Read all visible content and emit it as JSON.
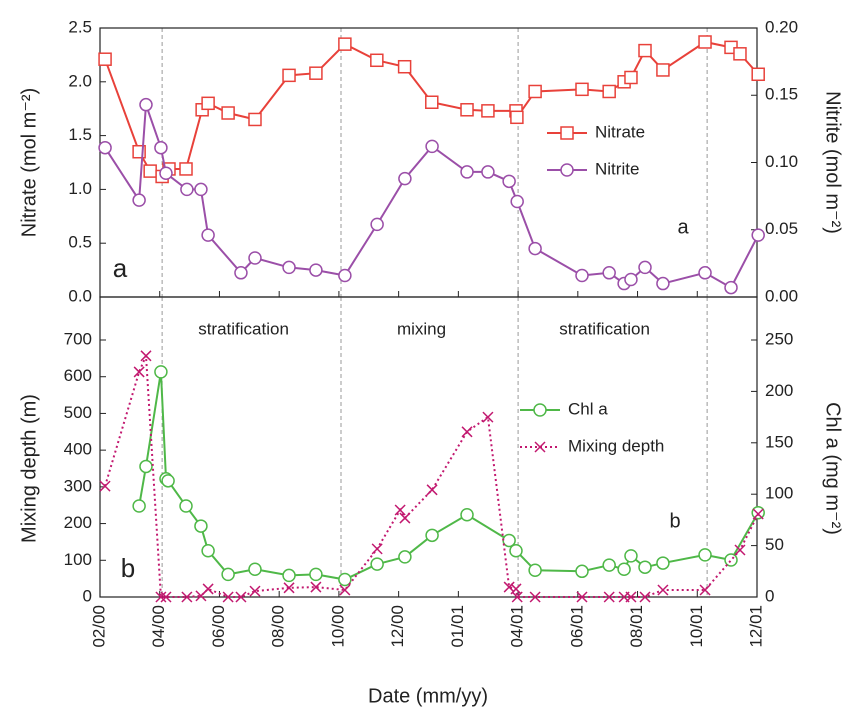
{
  "chart_data": [
    {
      "type": "line",
      "ylabel": "Nitrate (mol m⁻²)",
      "y2label": "Nitrite (mol m⁻²)",
      "xlim": [
        2,
        24
      ],
      "ylim": [
        0,
        2.5
      ],
      "yticks": [
        {
          "value": 0,
          "label": "0.0"
        },
        0.5,
        {
          "value": 1,
          "label": "1.0"
        },
        1.5,
        {
          "value": 2,
          "label": "2.0"
        },
        2.5
      ],
      "y2lim": [
        0,
        0.2
      ],
      "y2ticks": [
        {
          "value": 0,
          "label": "0.00"
        },
        0.05,
        {
          "value": 0.1,
          "label": "0.10"
        },
        0.15,
        {
          "value": 0.2,
          "label": "0.20"
        }
      ],
      "vlines": [
        4.08,
        10.07,
        16.0,
        22.33
      ],
      "panel_labels": [
        "a",
        "a"
      ],
      "series": [
        {
          "name": "Nitrate",
          "color": "#e8413a",
          "marker": "square",
          "dash": false,
          "x": [
            2.17,
            3.31,
            3.68,
            4.08,
            4.31,
            4.88,
            5.42,
            5.62,
            6.29,
            7.19,
            8.33,
            9.23,
            10.2,
            11.27,
            12.2,
            13.11,
            14.29,
            14.99,
            15.93,
            15.96,
            16.57,
            18.14,
            19.05,
            19.55,
            19.78,
            20.25,
            20.85,
            22.26,
            23.13,
            23.43,
            24.04
          ],
          "values": [
            2.21,
            1.35,
            1.17,
            1.12,
            1.19,
            1.19,
            1.74,
            1.8,
            1.71,
            1.65,
            2.06,
            2.08,
            2.35,
            2.2,
            2.14,
            1.81,
            1.74,
            1.73,
            1.73,
            1.67,
            1.91,
            1.93,
            1.91,
            2.0,
            2.04,
            2.29,
            2.11,
            2.37,
            2.32,
            2.26,
            2.07
          ]
        },
        {
          "name": "Nitrite",
          "color": "#9b4fa8",
          "marker": "circle",
          "axis": "y2",
          "dash": false,
          "x": [
            2.17,
            3.31,
            3.54,
            4.04,
            4.21,
            4.91,
            5.38,
            5.62,
            6.72,
            7.19,
            8.33,
            9.23,
            10.2,
            11.28,
            12.21,
            13.12,
            14.29,
            14.99,
            15.7,
            15.97,
            16.57,
            18.14,
            19.05,
            19.55,
            19.78,
            20.25,
            20.85,
            22.26,
            23.13,
            24.04
          ],
          "values": [
            0.111,
            0.072,
            0.143,
            0.111,
            0.092,
            0.08,
            0.08,
            0.046,
            0.018,
            0.029,
            0.022,
            0.02,
            0.016,
            0.054,
            0.088,
            0.112,
            0.093,
            0.093,
            0.086,
            0.071,
            0.036,
            0.016,
            0.018,
            0.01,
            0.013,
            0.022,
            0.01,
            0.018,
            0.007,
            0.046
          ]
        }
      ]
    },
    {
      "type": "line",
      "xlabel": "Date (mm/yy)",
      "ylabel": "Mixing depth (m)",
      "y2label": "Chl a (mg m⁻²)",
      "xlim": [
        2,
        24
      ],
      "xticks": [
        {
          "value": 2,
          "label": "02/00"
        },
        {
          "value": 4,
          "label": "04/00"
        },
        {
          "value": 6,
          "label": "06/00"
        },
        {
          "value": 8,
          "label": "08/00"
        },
        {
          "value": 10,
          "label": "10/00"
        },
        {
          "value": 12,
          "label": "12/00"
        },
        {
          "value": 14,
          "label": "01/01"
        },
        {
          "value": 16,
          "label": "04/01"
        },
        {
          "value": 18,
          "label": "06/01"
        },
        {
          "value": 20,
          "label": "08/01"
        },
        {
          "value": 22,
          "label": "10/01"
        },
        {
          "value": 24,
          "label": "12/01"
        }
      ],
      "ylim": [
        0,
        700
      ],
      "yticks": [
        0,
        100,
        200,
        300,
        400,
        500,
        600,
        700
      ],
      "y2lim": [
        0,
        250
      ],
      "y2ticks": [
        0,
        50,
        100,
        150,
        200,
        250
      ],
      "vlines": [
        4.08,
        10.07,
        16.0,
        22.33
      ],
      "region_labels": [
        "stratification",
        "mixing",
        "stratification"
      ],
      "panel_labels": [
        "b",
        "b"
      ],
      "series": [
        {
          "name": "Chl a",
          "color": "#4fb848",
          "marker": "circle",
          "axis": "y2",
          "dash": false,
          "x": [
            3.31,
            3.54,
            4.04,
            4.21,
            4.28,
            4.88,
            5.38,
            5.62,
            6.29,
            7.19,
            8.33,
            9.23,
            10.2,
            11.28,
            12.21,
            13.12,
            14.29,
            15.7,
            15.93,
            16.57,
            18.14,
            19.05,
            19.55,
            19.78,
            20.25,
            20.85,
            22.26,
            23.13,
            24.04
          ],
          "values": [
            88.5,
            127,
            219,
            115,
            113,
            88.5,
            69,
            45,
            22,
            27,
            21,
            22,
            17,
            32,
            39,
            60,
            80,
            55,
            45,
            26,
            25,
            31,
            27,
            40,
            29,
            33,
            41,
            36,
            82
          ]
        },
        {
          "name": "Mixing depth",
          "color": "#c2186f",
          "marker": "x",
          "dash": true,
          "x": [
            2.17,
            3.31,
            3.54,
            4.04,
            4.21,
            4.91,
            5.38,
            5.62,
            6.29,
            6.72,
            7.19,
            8.33,
            9.23,
            10.2,
            11.28,
            12.05,
            12.21,
            13.12,
            14.29,
            14.99,
            15.7,
            15.93,
            15.97,
            16.57,
            18.14,
            19.05,
            19.55,
            19.78,
            20.25,
            20.85,
            22.26,
            23.43,
            24.04
          ],
          "values": [
            302,
            613,
            657,
            0,
            0,
            0,
            3,
            22,
            0,
            0,
            16,
            25,
            27,
            19,
            131,
            237,
            215,
            292,
            450,
            490,
            27,
            22,
            0,
            0,
            0,
            0,
            0,
            0,
            0,
            19,
            19,
            128,
            226
          ]
        }
      ]
    }
  ]
}
